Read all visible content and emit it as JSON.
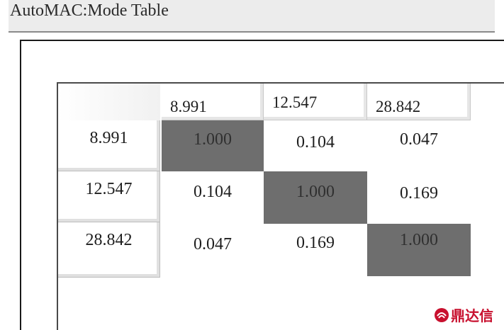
{
  "window": {
    "title": "AutoMAC:Mode Table"
  },
  "table": {
    "column_headers": [
      "8.991",
      "12.547",
      "28.842"
    ],
    "row_headers": [
      "8.991",
      "12.547",
      "28.842"
    ],
    "rows": [
      [
        "1.000",
        "0.104",
        "0.047"
      ],
      [
        "0.104",
        "1.000",
        "0.169"
      ],
      [
        "0.047",
        "0.169",
        "1.000"
      ]
    ],
    "diagonal_color": "#6e6e6e"
  },
  "watermark": {
    "text": "鼎达信",
    "color": "#c8102e"
  }
}
